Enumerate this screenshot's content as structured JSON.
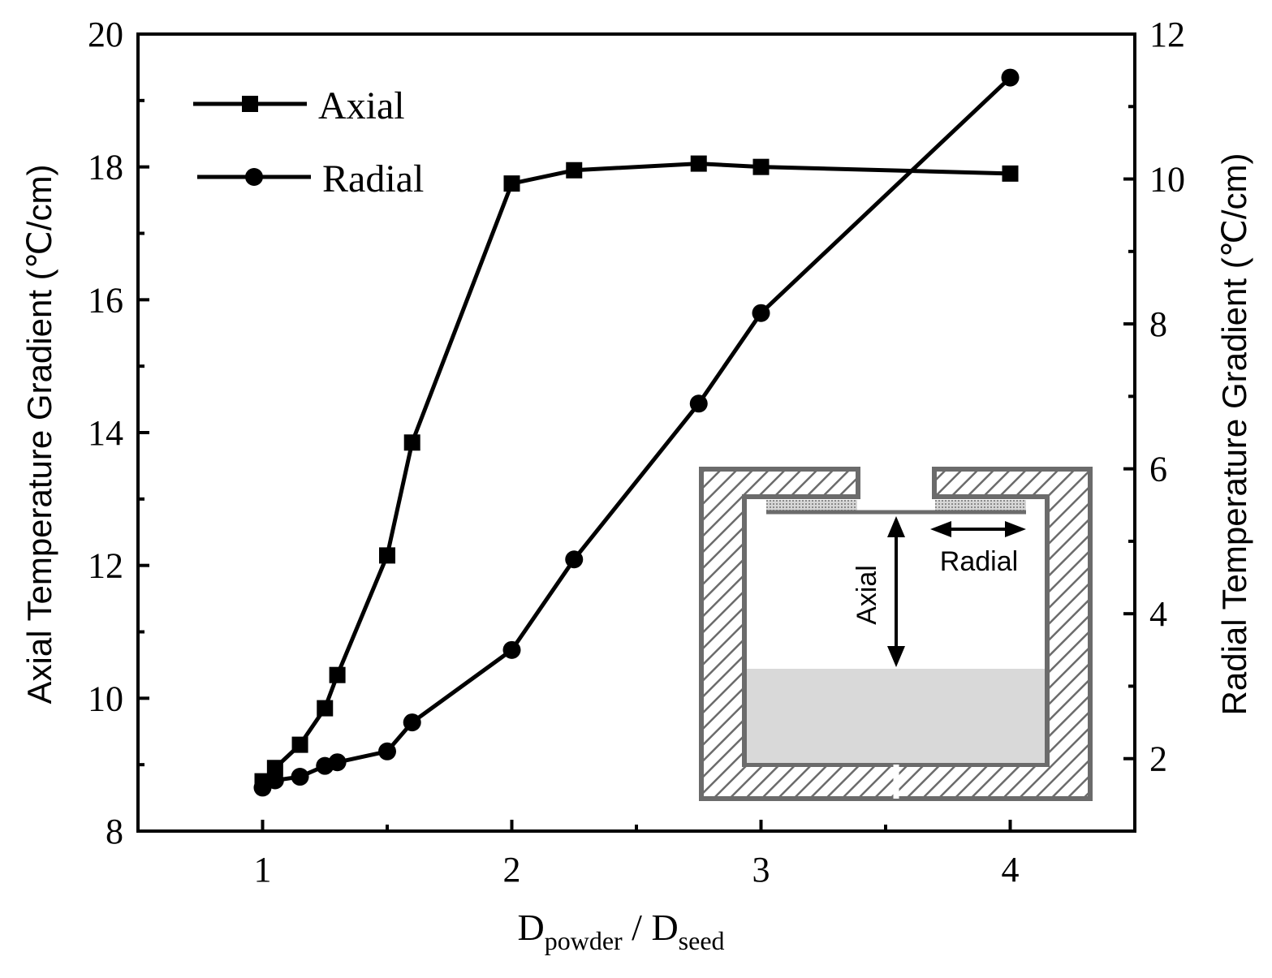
{
  "chart_data": {
    "type": "line",
    "xlabel": {
      "main": "D",
      "sub1": "powder",
      "sep": " / D",
      "sub2": "seed"
    },
    "ylabel_left": "Axial Temperature Gradient (℃/cm)",
    "ylabel_right": "Radial Temperature Gradient (℃/cm)",
    "xlim": [
      0.5,
      4.5
    ],
    "ylim_left": [
      8,
      20
    ],
    "ylim_right": [
      1,
      12
    ],
    "x_ticks": [
      "1",
      "2",
      "3",
      "4"
    ],
    "y_left_ticks": [
      "8",
      "10",
      "12",
      "14",
      "16",
      "18",
      "20"
    ],
    "y_right_ticks": [
      "2",
      "4",
      "6",
      "8",
      "10",
      "12"
    ],
    "legend_position": "top-left",
    "series": [
      {
        "name": "Axial",
        "axis": "left",
        "marker": "square",
        "x": [
          1.0,
          1.05,
          1.15,
          1.25,
          1.3,
          1.5,
          1.6,
          2.0,
          2.25,
          2.75,
          3.0,
          4.0
        ],
        "y": [
          8.75,
          8.95,
          9.3,
          9.85,
          10.35,
          12.15,
          13.85,
          17.75,
          17.95,
          18.05,
          18.0,
          17.9
        ]
      },
      {
        "name": "Radial",
        "axis": "right",
        "marker": "circle",
        "x": [
          1.0,
          1.05,
          1.15,
          1.25,
          1.3,
          1.5,
          1.6,
          2.0,
          2.25,
          2.75,
          3.0,
          4.0
        ],
        "y": [
          1.6,
          1.7,
          1.75,
          1.9,
          1.95,
          2.1,
          2.5,
          3.5,
          4.75,
          6.9,
          8.15,
          11.4
        ]
      }
    ],
    "inset": {
      "label_radial": "Radial",
      "label_axial": "Axial"
    }
  }
}
